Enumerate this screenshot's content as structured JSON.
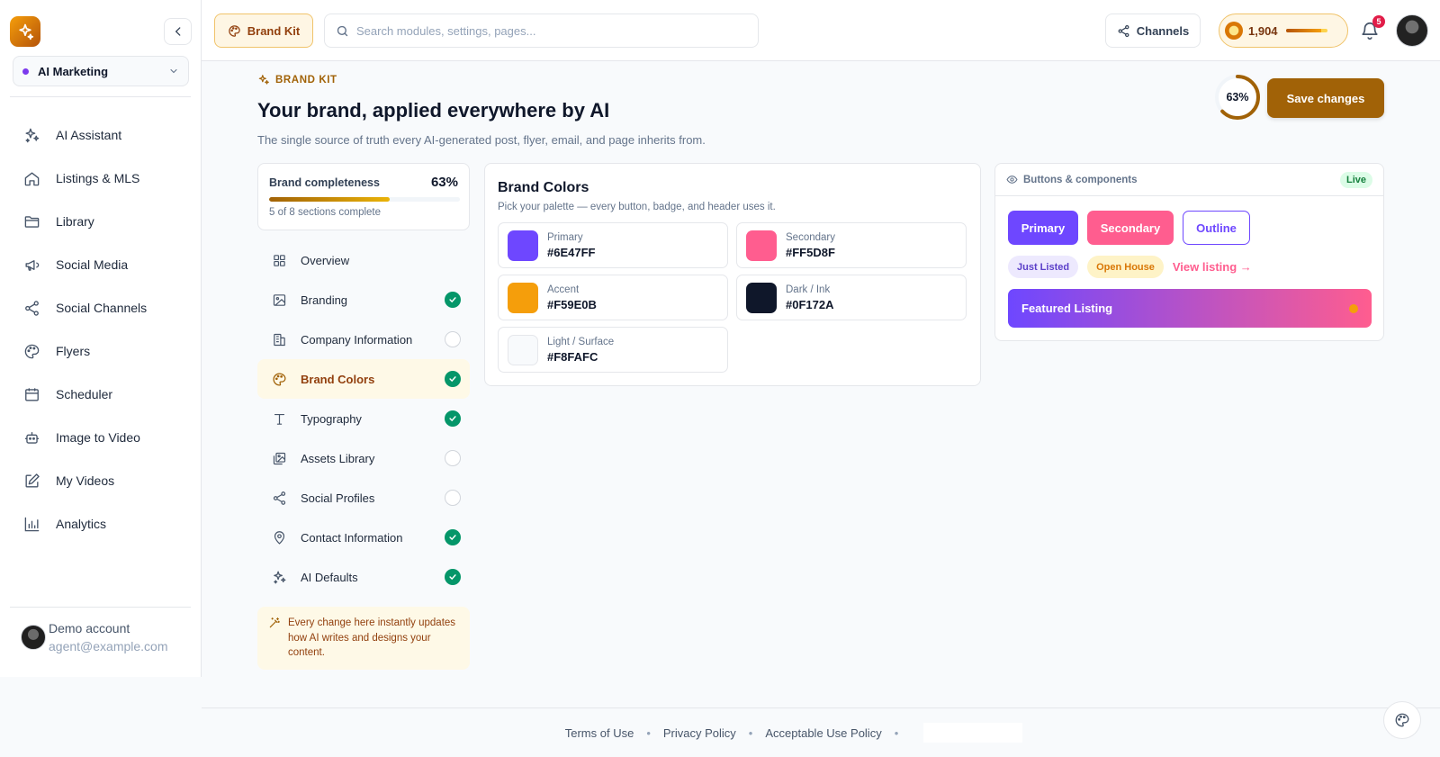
{
  "sidebar": {
    "workspace": "AI Marketing",
    "items": [
      {
        "label": "AI Assistant",
        "icon": "sparkles-icon"
      },
      {
        "label": "Listings & MLS",
        "icon": "home-icon"
      },
      {
        "label": "Library",
        "icon": "folder-icon"
      },
      {
        "label": "Social Media",
        "icon": "megaphone-icon"
      },
      {
        "label": "Social Channels",
        "icon": "share-icon"
      },
      {
        "label": "Flyers",
        "icon": "palette-icon"
      },
      {
        "label": "Scheduler",
        "icon": "calendar-icon"
      },
      {
        "label": "Image to Video",
        "icon": "robot-icon"
      },
      {
        "label": "My Videos",
        "icon": "edit-icon"
      },
      {
        "label": "Analytics",
        "icon": "bar-chart-icon"
      }
    ],
    "account": {
      "name": "Demo account",
      "email": "agent@example.com"
    }
  },
  "topbar": {
    "brand_kit_label": "Brand Kit",
    "search_placeholder": "Search modules, settings, pages...",
    "channels_label": "Channels",
    "credits": "1,904",
    "credits_level": 0.85,
    "notifications": "5"
  },
  "header": {
    "eyebrow": "BRAND KIT",
    "title": "Your brand, applied everywhere by AI",
    "subtitle": "The single source of truth every AI-generated post, flyer, email, and page inherits from.",
    "completeness": "63%",
    "completeness_value": 0.63,
    "save_label": "Save changes"
  },
  "completeness_card": {
    "label": "Brand completeness",
    "pct": "63%",
    "value": 0.63,
    "sub": "5 of 8 sections complete"
  },
  "sections": [
    {
      "label": "Overview",
      "status": "none"
    },
    {
      "label": "Branding",
      "status": "done"
    },
    {
      "label": "Company Information",
      "status": "todo"
    },
    {
      "label": "Brand Colors",
      "status": "done",
      "active": true
    },
    {
      "label": "Typography",
      "status": "done"
    },
    {
      "label": "Assets Library",
      "status": "todo"
    },
    {
      "label": "Social Profiles",
      "status": "todo"
    },
    {
      "label": "Contact Information",
      "status": "done"
    },
    {
      "label": "AI Defaults",
      "status": "done"
    }
  ],
  "tip": "Every change here instantly updates how AI writes and designs your content.",
  "brand_colors": {
    "title": "Brand Colors",
    "subtitle": "Pick your palette — every button, badge, and header uses it.",
    "colors": [
      {
        "name": "Primary",
        "hex": "#6E47FF"
      },
      {
        "name": "Secondary",
        "hex": "#FF5D8F"
      },
      {
        "name": "Accent",
        "hex": "#F59E0B"
      },
      {
        "name": "Dark / Ink",
        "hex": "#0F172A"
      },
      {
        "name": "Light / Surface",
        "hex": "#F8FAFC"
      }
    ]
  },
  "preview": {
    "title": "Buttons & components",
    "live": "Live",
    "primary": "Primary",
    "secondary": "Secondary",
    "outline": "Outline",
    "badge1": "Just Listed",
    "badge2": "Open House",
    "link": "View listing →",
    "featured": "Featured Listing"
  },
  "footer": {
    "terms": "Terms of Use",
    "privacy": "Privacy Policy",
    "aup": "Acceptable Use Policy"
  },
  "colors": {
    "accent": "#a16207",
    "success": "#059669"
  }
}
